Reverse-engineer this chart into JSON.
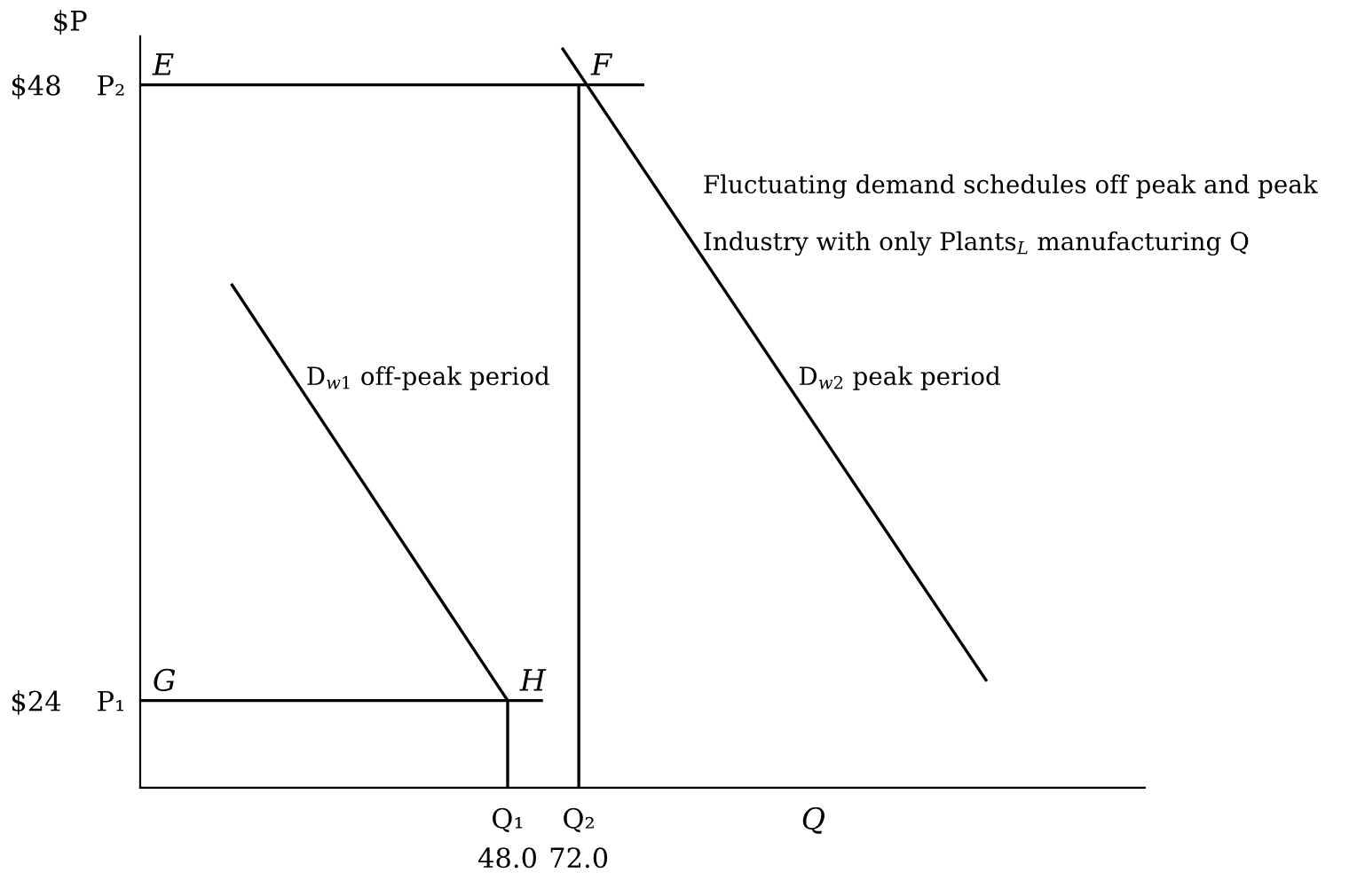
{
  "chart_data": {
    "type": "line",
    "xlabel": "Q",
    "ylabel": "$P",
    "xlim": [
      -76,
      263
    ],
    "ylim": [
      20.6,
      49.9
    ],
    "xticks": [
      {
        "value": 48,
        "label": "48.0"
      },
      {
        "value": 72,
        "label": "72.0"
      }
    ],
    "yticks": [
      {
        "value": 24,
        "label": "$24    P₁"
      },
      {
        "value": 48,
        "label": "$48    P₂"
      }
    ],
    "grid": false,
    "legend": false,
    "marker": "none",
    "line_style": "solid",
    "series": [
      {
        "color": "#000000",
        "x": [
          -45,
          48
        ],
        "values": [
          40.2,
          24
        ]
      },
      {
        "color": "#000000",
        "x": [
          66.6,
          209.4
        ],
        "values": [
          49.4,
          24.8
        ]
      },
      {
        "color": "#000000",
        "x": [
          -76,
          93.6
        ],
        "values": [
          48,
          48
        ]
      },
      {
        "color": "#000000",
        "x": [
          -76,
          59.4
        ],
        "values": [
          24,
          24
        ]
      },
      {
        "color": "#000000",
        "x": [
          72,
          72
        ],
        "values": [
          20.6,
          48
        ]
      },
      {
        "color": "#000000",
        "x": [
          48,
          48
        ],
        "values": [
          20.6,
          24
        ]
      }
    ],
    "annotations": [
      {
        "text": "E",
        "x": -76,
        "y": 48
      },
      {
        "text": "F",
        "x": 72,
        "y": 48
      },
      {
        "text": "G",
        "x": -76,
        "y": 24
      },
      {
        "text": "H",
        "x": 48,
        "y": 24
      },
      {
        "text": "Q₁",
        "x": 48,
        "y": 20.6
      },
      {
        "text": "Q₂",
        "x": 72,
        "y": 20.6
      },
      "D$_{w1}$ off-peak period",
      "D$_{w2}$ peak period",
      "Fluctuating demand schedules off peak and peak",
      "Industry with only Plants$_{L}$ manufacturing Q"
    ]
  }
}
